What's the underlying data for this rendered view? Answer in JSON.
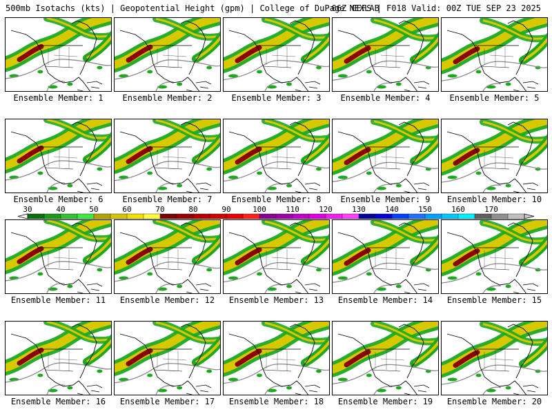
{
  "header": {
    "left": "500mb Isotachs (kts) | Geopotential Height (gpm) | College of DuPage NEXLAB",
    "right": "06Z GEFS | F018 Valid: 00Z TUE SEP 23 2025"
  },
  "panels": [
    {
      "caption": "Ensemble Member: 1"
    },
    {
      "caption": "Ensemble Member: 2"
    },
    {
      "caption": "Ensemble Member: 3"
    },
    {
      "caption": "Ensemble Member: 4"
    },
    {
      "caption": "Ensemble Member: 5"
    },
    {
      "caption": "Ensemble Member: 6"
    },
    {
      "caption": "Ensemble Member: 7"
    },
    {
      "caption": "Ensemble Member: 8"
    },
    {
      "caption": "Ensemble Member: 9"
    },
    {
      "caption": "Ensemble Member: 10"
    },
    {
      "caption": "Ensemble Member: 11"
    },
    {
      "caption": "Ensemble Member: 12"
    },
    {
      "caption": "Ensemble Member: 13"
    },
    {
      "caption": "Ensemble Member: 14"
    },
    {
      "caption": "Ensemble Member: 15"
    },
    {
      "caption": "Ensemble Member: 16"
    },
    {
      "caption": "Ensemble Member: 17"
    },
    {
      "caption": "Ensemble Member: 18"
    },
    {
      "caption": "Ensemble Member: 19"
    },
    {
      "caption": "Ensemble Member: 20"
    }
  ],
  "colorbar": {
    "labels": [
      "30",
      "40",
      "50",
      "60",
      "70",
      "80",
      "90",
      "100",
      "110",
      "120",
      "130",
      "140",
      "150",
      "160",
      "170"
    ],
    "colors": [
      "#0a6e0a",
      "#1c9a1c",
      "#34c234",
      "#3fe83f",
      "#b5a400",
      "#d6c400",
      "#f2e000",
      "#ffff40",
      "#7a0000",
      "#960000",
      "#b40000",
      "#cc0000",
      "#e60000",
      "#ff2020",
      "#8a0090",
      "#a000a8",
      "#c000c8",
      "#dc00e0",
      "#f020f0",
      "#ff40ff",
      "#00009a",
      "#0000d0",
      "#0040ff",
      "#2070ff",
      "#00a0ff",
      "#00c8ff",
      "#00f0ff",
      "#606060",
      "#909090",
      "#c0c0c0"
    ]
  },
  "map_colors": {
    "jet_outer": "#1ea81e",
    "jet_mid": "#d8c800",
    "jet_core": "#8b0000",
    "height_contour": "#8c8c8c",
    "coast": "#000000"
  }
}
